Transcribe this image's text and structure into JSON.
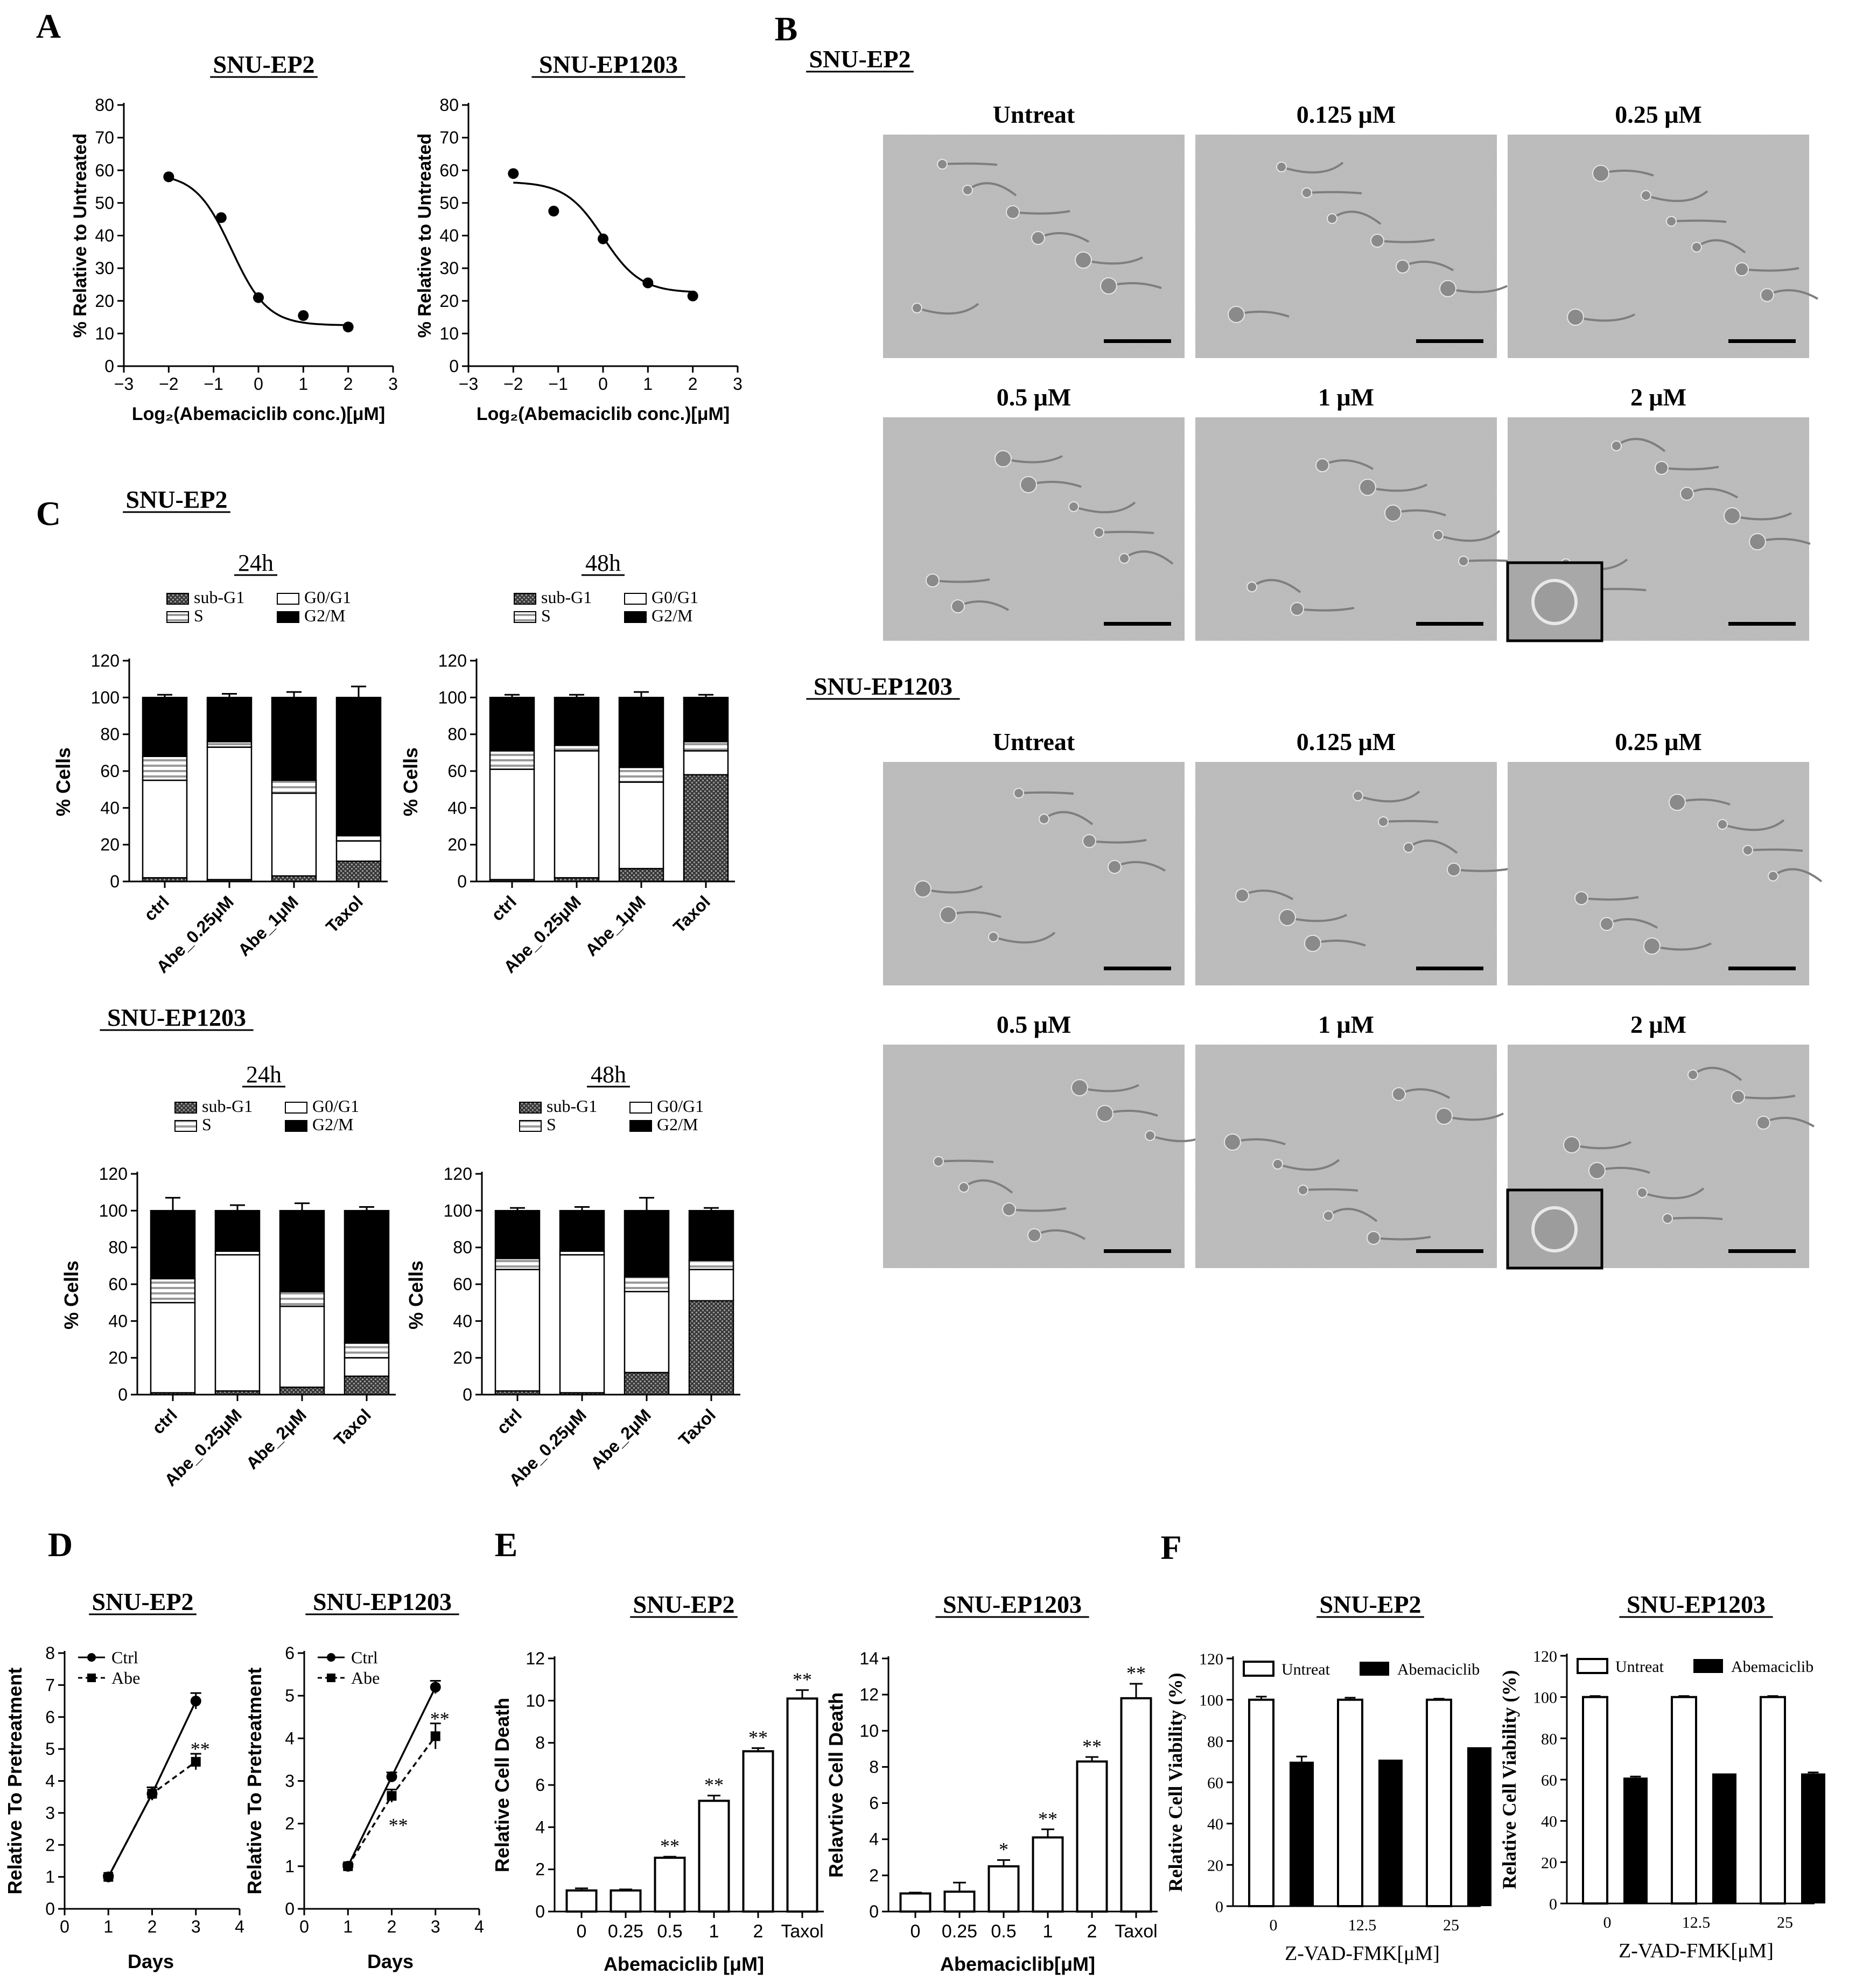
{
  "panels": {
    "A": {
      "letter": "A",
      "charts": [
        {
          "title": "SNU-EP2",
          "points": [
            [
              -2,
              58
            ],
            [
              -0.83,
              45.5
            ],
            [
              0,
              21
            ],
            [
              1,
              15.5
            ],
            [
              2,
              12
            ]
          ],
          "curve": {
            "top": 59,
            "bottom": 12.5,
            "mid": -0.6,
            "slope": 1.25
          }
        },
        {
          "title": "SNU-EP1203",
          "points": [
            [
              -2,
              59
            ],
            [
              -1.1,
              47.5
            ],
            [
              0,
              39
            ],
            [
              1,
              25.5
            ],
            [
              2,
              21.5
            ]
          ],
          "curve": {
            "top": 56.5,
            "bottom": 22.5,
            "mid": 0,
            "slope": 1.2
          }
        }
      ],
      "ylabel": "% Relative to Untreated",
      "xlabel": "Log₂(Abemaciclib conc.)[μM]",
      "xticks": [
        "−3",
        "−2",
        "−1",
        "0",
        "1",
        "2",
        "3"
      ],
      "yticks": [
        "0",
        "10",
        "20",
        "30",
        "40",
        "50",
        "60",
        "70",
        "80"
      ]
    },
    "B": {
      "letter": "B",
      "groups": [
        {
          "title": "SNU-EP2",
          "labels": [
            "Untreat",
            "0.125 μM",
            "0.25 μM",
            "0.5 μM",
            "1 μM",
            "2 μM"
          ]
        },
        {
          "title": "SNU-EP1203",
          "labels": [
            "Untreat",
            "0.125 μM",
            "0.25 μM",
            "0.5 μM",
            "1 μM",
            "2 μM"
          ]
        }
      ]
    },
    "C": {
      "letter": "C",
      "legend": [
        "sub-G1",
        "G0/G1",
        "S",
        "G2/M"
      ],
      "ylabel": "% Cells",
      "yticks": [
        "0",
        "20",
        "40",
        "60",
        "80",
        "100",
        "120"
      ],
      "groups": [
        {
          "title": "SNU-EP2",
          "charts": [
            {
              "time": "24h",
              "categories": [
                "ctrl",
                "Abe_0.25μM",
                "Abe_1μM",
                "Taxol"
              ],
              "series": {
                "subG1": [
                  2,
                  1,
                  3,
                  11
                ],
                "G0G1": [
                  53,
                  72,
                  45,
                  11
                ],
                "S": [
                  13,
                  3,
                  7,
                  3
                ],
                "G2M": [
                  32,
                  24,
                  45,
                  75
                ]
              },
              "err": [
                1.5,
                2,
                3,
                6
              ]
            },
            {
              "time": "48h",
              "categories": [
                "ctrl",
                "Abe_0.25μM",
                "Abe_1μM",
                "Taxol"
              ],
              "series": {
                "subG1": [
                  1,
                  2,
                  7,
                  58
                ],
                "G0G1": [
                  60,
                  69,
                  47,
                  13
                ],
                "S": [
                  10,
                  3,
                  8,
                  5
                ],
                "G2M": [
                  29,
                  26,
                  38,
                  24
                ]
              },
              "err": [
                1.5,
                1.5,
                3,
                1.5
              ]
            }
          ]
        },
        {
          "title": "SNU-EP1203",
          "charts": [
            {
              "time": "24h",
              "categories": [
                "ctrl",
                "Abe_0.25μM",
                "Abe_2μM",
                "Taxol"
              ],
              "series": {
                "subG1": [
                  1,
                  2,
                  4,
                  10
                ],
                "G0G1": [
                  49,
                  74,
                  44,
                  10
                ],
                "S": [
                  13,
                  2,
                  8,
                  8
                ],
                "G2M": [
                  37,
                  22,
                  44,
                  72
                ]
              },
              "err": [
                7,
                3,
                4,
                2
              ]
            },
            {
              "time": "48h",
              "categories": [
                "ctrl",
                "Abe_0.25μM",
                "Abe_2μM",
                "Taxol"
              ],
              "series": {
                "subG1": [
                  2,
                  1,
                  12,
                  51
                ],
                "G0G1": [
                  66,
                  75,
                  44,
                  17
                ],
                "S": [
                  6,
                  2,
                  8,
                  5
                ],
                "G2M": [
                  26,
                  22,
                  36,
                  27
                ]
              },
              "err": [
                1.5,
                2,
                7,
                1.5
              ]
            }
          ]
        }
      ]
    },
    "D": {
      "letter": "D",
      "xlabel": "Days",
      "ylabel": "Relative To Pretreatment",
      "legend": [
        "Ctrl",
        "Abe"
      ],
      "charts": [
        {
          "title": "SNU-EP2",
          "ymax": 8,
          "yticks": [
            "0",
            "1",
            "2",
            "3",
            "4",
            "5",
            "6",
            "7",
            "8"
          ],
          "x": [
            1,
            2,
            3
          ],
          "ctrl": [
            1,
            3.6,
            6.5
          ],
          "abe": [
            1,
            3.6,
            4.6
          ],
          "ctrl_err": [
            0.05,
            0.2,
            0.25
          ],
          "abe_err": [
            0.05,
            0.2,
            0.25
          ],
          "stars": [
            {
              "x": 3,
              "y": 5.05,
              "text": "**"
            }
          ]
        },
        {
          "title": "SNU-EP1203",
          "ymax": 6,
          "yticks": [
            "0",
            "1",
            "2",
            "3",
            "4",
            "5",
            "6"
          ],
          "x": [
            1,
            2,
            3
          ],
          "ctrl": [
            1,
            3.1,
            5.2
          ],
          "abe": [
            1,
            2.65,
            4.05
          ],
          "ctrl_err": [
            0.05,
            0.1,
            0.15
          ],
          "abe_err": [
            0.05,
            0.15,
            0.3
          ],
          "stars": [
            {
              "x": 3,
              "y": 4.5,
              "text": "**"
            },
            {
              "x": 2.05,
              "y": 2.0,
              "text": "**"
            }
          ]
        }
      ],
      "xticks": [
        "0",
        "1",
        "2",
        "3",
        "4"
      ]
    },
    "E": {
      "letter": "E",
      "charts": [
        {
          "title": "SNU-EP2",
          "xlabel": "Abemaciclib [μM]",
          "ylabel": "Relative Cell Death",
          "ymax": 12,
          "yticks": [
            "0",
            "2",
            "4",
            "6",
            "8",
            "10",
            "12"
          ],
          "categories": [
            "0",
            "0.25",
            "0.5",
            "1",
            "2",
            "Taxol"
          ],
          "values": [
            1,
            1,
            2.55,
            5.25,
            7.6,
            10.1
          ],
          "err": [
            0.1,
            0.05,
            0.05,
            0.25,
            0.15,
            0.4
          ],
          "stars": [
            "",
            "",
            "**",
            "**",
            "**",
            "**"
          ]
        },
        {
          "title": "SNU-EP1203",
          "xlabel": "Abemaciclib[μM]",
          "ylabel": "Relavtive Cell Death",
          "ymax": 14,
          "yticks": [
            "0",
            "2",
            "4",
            "6",
            "8",
            "10",
            "12",
            "14"
          ],
          "categories": [
            "0",
            "0.25",
            "0.5",
            "1",
            "2",
            "Taxol"
          ],
          "values": [
            1,
            1.1,
            2.5,
            4.1,
            8.3,
            11.8
          ],
          "err": [
            0.05,
            0.5,
            0.35,
            0.45,
            0.25,
            0.8
          ],
          "stars": [
            "",
            "",
            "*",
            "**",
            "**",
            "**"
          ]
        }
      ]
    },
    "F": {
      "letter": "F",
      "xlabel": "Z-VAD-FMK[μM]",
      "ylabel": "Relative Cell Viability (%)",
      "legend": [
        "Untreat",
        "Abemaciclib"
      ],
      "yticks": [
        "0",
        "20",
        "40",
        "60",
        "80",
        "100",
        "120"
      ],
      "charts": [
        {
          "title": "SNU-EP2",
          "categories": [
            "0",
            "12.5",
            "25"
          ],
          "untreat": [
            100,
            100,
            100
          ],
          "abemaciclib": [
            70,
            71,
            77
          ],
          "untreat_err": [
            1.5,
            1,
            0.5
          ],
          "abemaciclib_err": [
            2.5,
            0,
            0
          ]
        },
        {
          "title": "SNU-EP1203",
          "categories": [
            "0",
            "12.5",
            "25"
          ],
          "untreat": [
            100,
            100,
            100
          ],
          "abemaciclib": [
            61,
            63,
            63
          ],
          "untreat_err": [
            0.5,
            0.5,
            0.5
          ],
          "abemaciclib_err": [
            0.5,
            0,
            0.5
          ]
        }
      ]
    }
  },
  "chart_data": [
    {
      "type": "line",
      "title": "SNU-EP2",
      "xlabel": "Log₂(Abemaciclib conc.)[μM]",
      "ylabel": "% Relative to Untreated",
      "x": [
        -2,
        -0.83,
        0,
        1,
        2
      ],
      "values": [
        58,
        45.5,
        21,
        15.5,
        12
      ],
      "xlim": [
        -3,
        3
      ],
      "ylim": [
        0,
        80
      ]
    },
    {
      "type": "line",
      "title": "SNU-EP1203",
      "xlabel": "Log₂(Abemaciclib conc.)[μM]",
      "ylabel": "% Relative to Untreated",
      "x": [
        -2,
        -1.1,
        0,
        1,
        2
      ],
      "values": [
        59,
        47.5,
        39,
        25.5,
        21.5
      ],
      "xlim": [
        -3,
        3
      ],
      "ylim": [
        0,
        80
      ]
    },
    {
      "type": "bar",
      "title": "SNU-EP2 24h",
      "categories": [
        "ctrl",
        "Abe_0.25μM",
        "Abe_1μM",
        "Taxol"
      ],
      "ylabel": "% Cells",
      "ylim": [
        0,
        120
      ],
      "series": [
        {
          "name": "sub-G1",
          "values": [
            2,
            1,
            3,
            11
          ]
        },
        {
          "name": "G0/G1",
          "values": [
            53,
            72,
            45,
            11
          ]
        },
        {
          "name": "S",
          "values": [
            13,
            3,
            7,
            3
          ]
        },
        {
          "name": "G2/M",
          "values": [
            32,
            24,
            45,
            75
          ]
        }
      ]
    },
    {
      "type": "bar",
      "title": "SNU-EP2 48h",
      "categories": [
        "ctrl",
        "Abe_0.25μM",
        "Abe_1μM",
        "Taxol"
      ],
      "ylabel": "% Cells",
      "ylim": [
        0,
        120
      ],
      "series": [
        {
          "name": "sub-G1",
          "values": [
            1,
            2,
            7,
            58
          ]
        },
        {
          "name": "G0/G1",
          "values": [
            60,
            69,
            47,
            13
          ]
        },
        {
          "name": "S",
          "values": [
            10,
            3,
            8,
            5
          ]
        },
        {
          "name": "G2/M",
          "values": [
            29,
            26,
            38,
            24
          ]
        }
      ]
    },
    {
      "type": "bar",
      "title": "SNU-EP1203 24h",
      "categories": [
        "ctrl",
        "Abe_0.25μM",
        "Abe_2μM",
        "Taxol"
      ],
      "ylabel": "% Cells",
      "ylim": [
        0,
        120
      ],
      "series": [
        {
          "name": "sub-G1",
          "values": [
            1,
            2,
            4,
            10
          ]
        },
        {
          "name": "G0/G1",
          "values": [
            49,
            74,
            44,
            10
          ]
        },
        {
          "name": "S",
          "values": [
            13,
            2,
            8,
            8
          ]
        },
        {
          "name": "G2/M",
          "values": [
            37,
            22,
            44,
            72
          ]
        }
      ]
    },
    {
      "type": "bar",
      "title": "SNU-EP1203 48h",
      "categories": [
        "ctrl",
        "Abe_0.25μM",
        "Abe_2μM",
        "Taxol"
      ],
      "ylabel": "% Cells",
      "ylim": [
        0,
        120
      ],
      "series": [
        {
          "name": "sub-G1",
          "values": [
            2,
            1,
            12,
            51
          ]
        },
        {
          "name": "G0/G1",
          "values": [
            66,
            75,
            44,
            17
          ]
        },
        {
          "name": "S",
          "values": [
            6,
            2,
            8,
            5
          ]
        },
        {
          "name": "G2/M",
          "values": [
            26,
            22,
            36,
            27
          ]
        }
      ]
    },
    {
      "type": "line",
      "title": "SNU-EP2",
      "xlabel": "Days",
      "ylabel": "Relative To Pretreatment",
      "x": [
        1,
        2,
        3
      ],
      "ylim": [
        0,
        8
      ],
      "series": [
        {
          "name": "Ctrl",
          "values": [
            1,
            3.6,
            6.5
          ]
        },
        {
          "name": "Abe",
          "values": [
            1,
            3.6,
            4.6
          ]
        }
      ]
    },
    {
      "type": "line",
      "title": "SNU-EP1203",
      "xlabel": "Days",
      "ylabel": "Relative To Pretreatment",
      "x": [
        1,
        2,
        3
      ],
      "ylim": [
        0,
        6
      ],
      "series": [
        {
          "name": "Ctrl",
          "values": [
            1,
            3.1,
            5.2
          ]
        },
        {
          "name": "Abe",
          "values": [
            1,
            2.65,
            4.05
          ]
        }
      ]
    },
    {
      "type": "bar",
      "title": "SNU-EP2",
      "xlabel": "Abemaciclib [μM]",
      "ylabel": "Relative Cell Death",
      "categories": [
        "0",
        "0.25",
        "0.5",
        "1",
        "2",
        "Taxol"
      ],
      "values": [
        1,
        1,
        2.55,
        5.25,
        7.6,
        10.1
      ],
      "ylim": [
        0,
        12
      ]
    },
    {
      "type": "bar",
      "title": "SNU-EP1203",
      "xlabel": "Abemaciclib[μM]",
      "ylabel": "Relavtive Cell Death",
      "categories": [
        "0",
        "0.25",
        "0.5",
        "1",
        "2",
        "Taxol"
      ],
      "values": [
        1,
        1.1,
        2.5,
        4.1,
        8.3,
        11.8
      ],
      "ylim": [
        0,
        14
      ]
    },
    {
      "type": "bar",
      "title": "SNU-EP2",
      "xlabel": "Z-VAD-FMK[μM]",
      "ylabel": "Relative Cell Viability (%)",
      "categories": [
        "0",
        "12.5",
        "25"
      ],
      "ylim": [
        0,
        120
      ],
      "series": [
        {
          "name": "Untreat",
          "values": [
            100,
            100,
            100
          ]
        },
        {
          "name": "Abemaciclib",
          "values": [
            70,
            71,
            77
          ]
        }
      ]
    },
    {
      "type": "bar",
      "title": "SNU-EP1203",
      "xlabel": "Z-VAD-FMK[μM]",
      "ylabel": "Relative Cell Viability (%)",
      "categories": [
        "0",
        "12.5",
        "25"
      ],
      "ylim": [
        0,
        120
      ],
      "series": [
        {
          "name": "Untreat",
          "values": [
            100,
            100,
            100
          ]
        },
        {
          "name": "Abemaciclib",
          "values": [
            61,
            63,
            63
          ]
        }
      ]
    }
  ]
}
